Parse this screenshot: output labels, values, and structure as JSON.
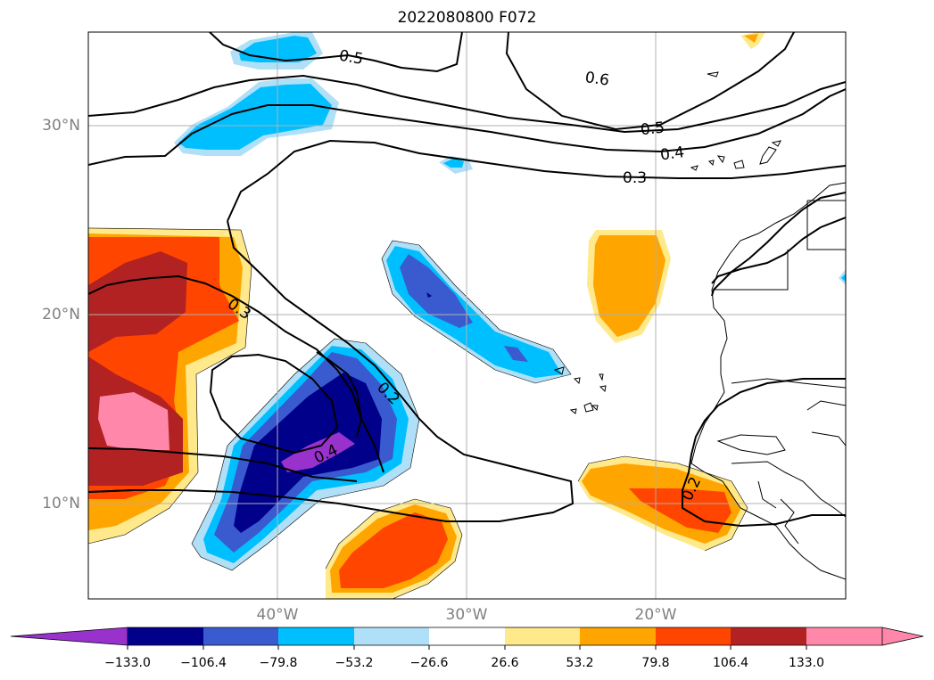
{
  "title": "2022080800 F072",
  "map": {
    "lat_labels": [
      "30°N",
      "20°N",
      "10°N"
    ],
    "lon_labels": [
      "40°W",
      "30°W",
      "20°W"
    ],
    "contour_labels": [
      "0.5",
      "0.6",
      "0.5",
      "0.4",
      "0.3",
      "0.3",
      "0.2",
      "0.4",
      "0.2"
    ]
  },
  "colorbar": {
    "tick_labels": [
      "−133.0",
      "−106.4",
      "−79.8",
      "−53.2",
      "−26.6",
      "26.6",
      "53.2",
      "79.8",
      "106.4",
      "133.0"
    ],
    "colors": [
      "#9932CC",
      "#00008B",
      "#3A5BD0",
      "#00BFFF",
      "#B0E0F8",
      "#FFFFFF",
      "#FFE98A",
      "#FFA500",
      "#FF4500",
      "#B22222",
      "#FF88AA"
    ]
  }
}
